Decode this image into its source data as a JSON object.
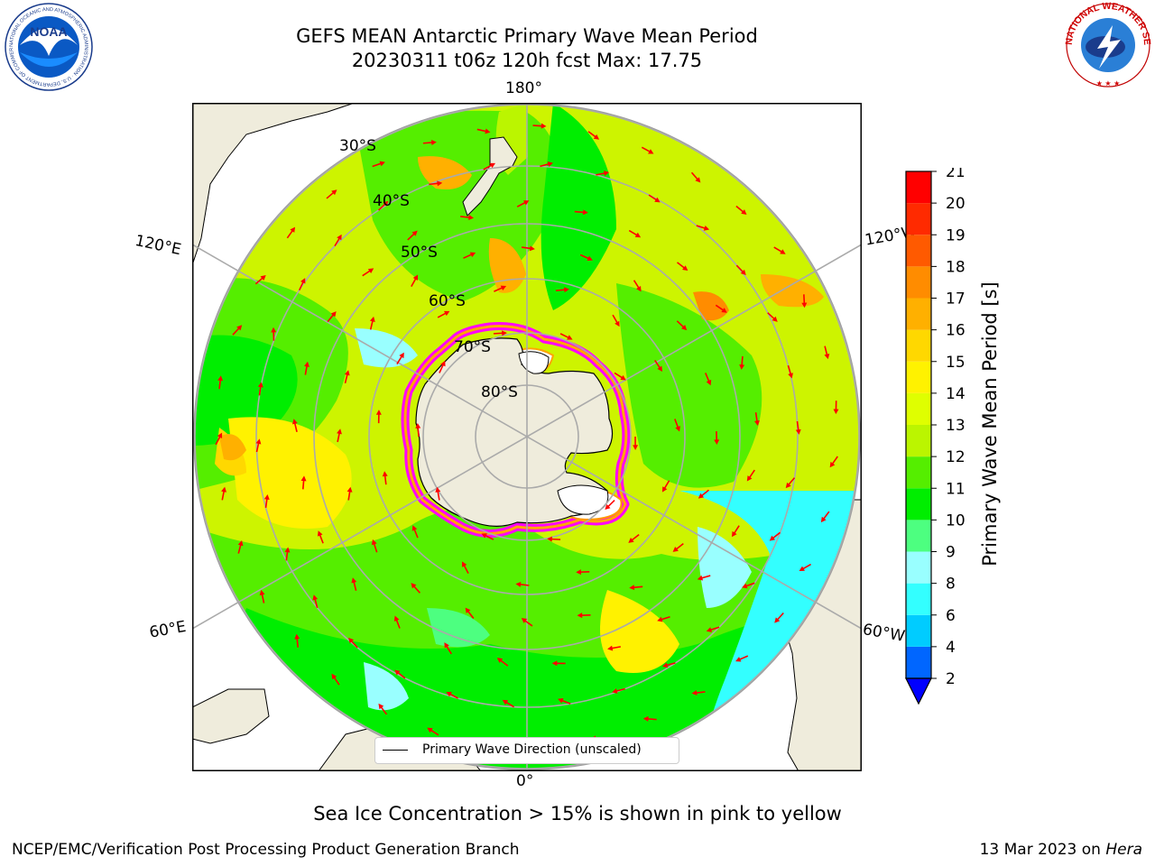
{
  "header": {
    "title_line1": "GEFS MEAN Antarctic Primary Wave Mean Period",
    "title_line2": "20230311 t06z 120h fcst   Max: 17.75"
  },
  "map": {
    "projection": "south-polar-stereographic",
    "longitude_labels": {
      "top": "180°",
      "bottom": "0°",
      "upper_left": "120°E",
      "upper_right": "120°W",
      "lower_left": "60°E",
      "lower_right": "60°W"
    },
    "latitude_labels": [
      "30°S",
      "40°S",
      "50°S",
      "60°S",
      "70°S",
      "80°S"
    ],
    "land_color": "#efecdc",
    "ice_colors": [
      "#ff00ff",
      "#ffa500",
      "#ffff00"
    ],
    "arrow_color": "#ff0000",
    "legend": {
      "label": "Primary Wave Direction (unscaled)"
    }
  },
  "colorbar": {
    "label": "Primary Wave Mean Period [s]",
    "ticks": [
      "2",
      "4",
      "6",
      "8",
      "9",
      "10",
      "11",
      "12",
      "13",
      "14",
      "15",
      "16",
      "17",
      "18",
      "19",
      "20",
      "21"
    ],
    "colors": [
      "#0066ff",
      "#00ccff",
      "#33ffff",
      "#99ffff",
      "#4dff80",
      "#00ee00",
      "#55ee00",
      "#bbf500",
      "#dfff00",
      "#fff200",
      "#ffd800",
      "#ffb000",
      "#ff8c00",
      "#ff5a00",
      "#ff2a00",
      "#ff0000"
    ],
    "under_color": "#0000ff"
  },
  "footer": {
    "note": "Sea Ice Concentration > 15% is shown in pink to yellow",
    "credit": "NCEP/EMC/Verification Post Processing Product Generation Branch",
    "date": "13 Mar 2023 on",
    "host": "Hera"
  },
  "logos": {
    "noaa": {
      "text": "NOAA",
      "ring_text": "NATIONAL OCEANIC AND ATMOSPHERIC ADMINISTRATION · U.S. DEPARTMENT OF COMMERCE"
    },
    "nws": {
      "ring_text": "NATIONAL WEATHER SERVICE"
    }
  }
}
